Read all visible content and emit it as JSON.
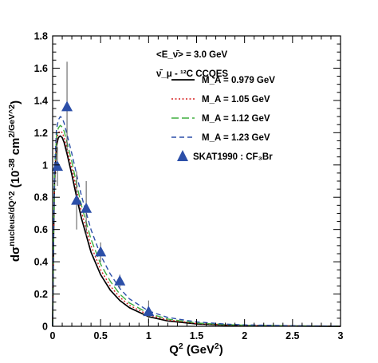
{
  "chart_data": {
    "type": "line",
    "xlabel": "Q² (GeV²)",
    "ylabel": "dσ^nucleus/dQ² (10^-38 cm²/GeV²)",
    "xlim": [
      0,
      3
    ],
    "ylim": [
      0,
      1.8
    ],
    "x_ticks": [
      "0",
      "0.5",
      "1",
      "1.5",
      "2",
      "2.5",
      "3"
    ],
    "y_ticks": [
      "0",
      "0.2",
      "0.4",
      "0.6",
      "0.8",
      "1",
      "1.2",
      "1.4",
      "1.6",
      "1.8"
    ],
    "grid": false,
    "legend_position": "top-right",
    "legend_header": [
      "<E_ν̄> = 3.0 GeV",
      "ν̄_μ - ¹²C CCQES"
    ],
    "series": [
      {
        "name": "M_A = 0.979 GeV",
        "color": "#000000",
        "dash": "solid",
        "x": [
          0.0,
          0.01,
          0.02,
          0.04,
          0.06,
          0.08,
          0.1,
          0.12,
          0.15,
          0.2,
          0.25,
          0.3,
          0.4,
          0.5,
          0.6,
          0.7,
          0.8,
          1.0,
          1.2,
          1.5,
          1.8,
          2.0,
          2.5,
          3.0
        ],
        "y": [
          0.0,
          0.55,
          0.9,
          1.12,
          1.17,
          1.18,
          1.17,
          1.14,
          1.07,
          0.94,
          0.8,
          0.67,
          0.46,
          0.32,
          0.225,
          0.16,
          0.115,
          0.06,
          0.033,
          0.015,
          0.007,
          0.004,
          0.0015,
          0.0
        ]
      },
      {
        "name": "M_A = 1.05 GeV",
        "color": "#d62020",
        "dash": "dotted",
        "x": [
          0.0,
          0.01,
          0.02,
          0.04,
          0.06,
          0.08,
          0.1,
          0.12,
          0.15,
          0.2,
          0.25,
          0.3,
          0.4,
          0.5,
          0.6,
          0.7,
          0.8,
          1.0,
          1.2,
          1.5,
          1.8,
          2.0,
          2.5,
          3.0
        ],
        "y": [
          0.0,
          0.56,
          0.92,
          1.15,
          1.2,
          1.21,
          1.2,
          1.17,
          1.1,
          0.98,
          0.84,
          0.71,
          0.5,
          0.35,
          0.25,
          0.18,
          0.13,
          0.07,
          0.039,
          0.018,
          0.009,
          0.005,
          0.002,
          0.0
        ]
      },
      {
        "name": "M_A = 1.12 GeV",
        "color": "#3fae3f",
        "dash": "longdash",
        "x": [
          0.0,
          0.01,
          0.02,
          0.04,
          0.06,
          0.08,
          0.1,
          0.12,
          0.15,
          0.2,
          0.25,
          0.3,
          0.4,
          0.5,
          0.6,
          0.7,
          0.8,
          1.0,
          1.2,
          1.5,
          1.8,
          2.0,
          2.5,
          3.0
        ],
        "y": [
          0.0,
          0.57,
          0.94,
          1.18,
          1.23,
          1.245,
          1.235,
          1.21,
          1.14,
          1.02,
          0.88,
          0.75,
          0.54,
          0.385,
          0.28,
          0.2,
          0.145,
          0.08,
          0.045,
          0.021,
          0.011,
          0.007,
          0.0025,
          0.0
        ]
      },
      {
        "name": "M_A = 1.23 GeV",
        "color": "#2c4fa8",
        "dash": "dashed",
        "x": [
          0.0,
          0.01,
          0.02,
          0.04,
          0.06,
          0.08,
          0.1,
          0.12,
          0.15,
          0.2,
          0.25,
          0.3,
          0.4,
          0.5,
          0.6,
          0.7,
          0.8,
          1.0,
          1.2,
          1.5,
          1.8,
          2.0,
          2.5,
          3.0
        ],
        "y": [
          0.0,
          0.58,
          0.97,
          1.22,
          1.28,
          1.3,
          1.29,
          1.26,
          1.19,
          1.07,
          0.94,
          0.81,
          0.6,
          0.44,
          0.325,
          0.235,
          0.17,
          0.095,
          0.055,
          0.027,
          0.014,
          0.009,
          0.0035,
          0.001
        ]
      }
    ],
    "data_points": {
      "name": "SKAT1990 : CF₃Br",
      "color": "#2c4fa8",
      "marker": "triangle",
      "points": [
        {
          "x": 0.05,
          "y": 0.99,
          "err": 0.12
        },
        {
          "x": 0.15,
          "y": 1.36,
          "err": 0.28
        },
        {
          "x": 0.25,
          "y": 0.78,
          "err": 0.18
        },
        {
          "x": 0.35,
          "y": 0.73,
          "err": 0.17
        },
        {
          "x": 0.5,
          "y": 0.46,
          "err": 0.06
        },
        {
          "x": 0.7,
          "y": 0.28,
          "err": 0.04
        },
        {
          "x": 1.0,
          "y": 0.09,
          "err": 0.07
        }
      ]
    }
  }
}
